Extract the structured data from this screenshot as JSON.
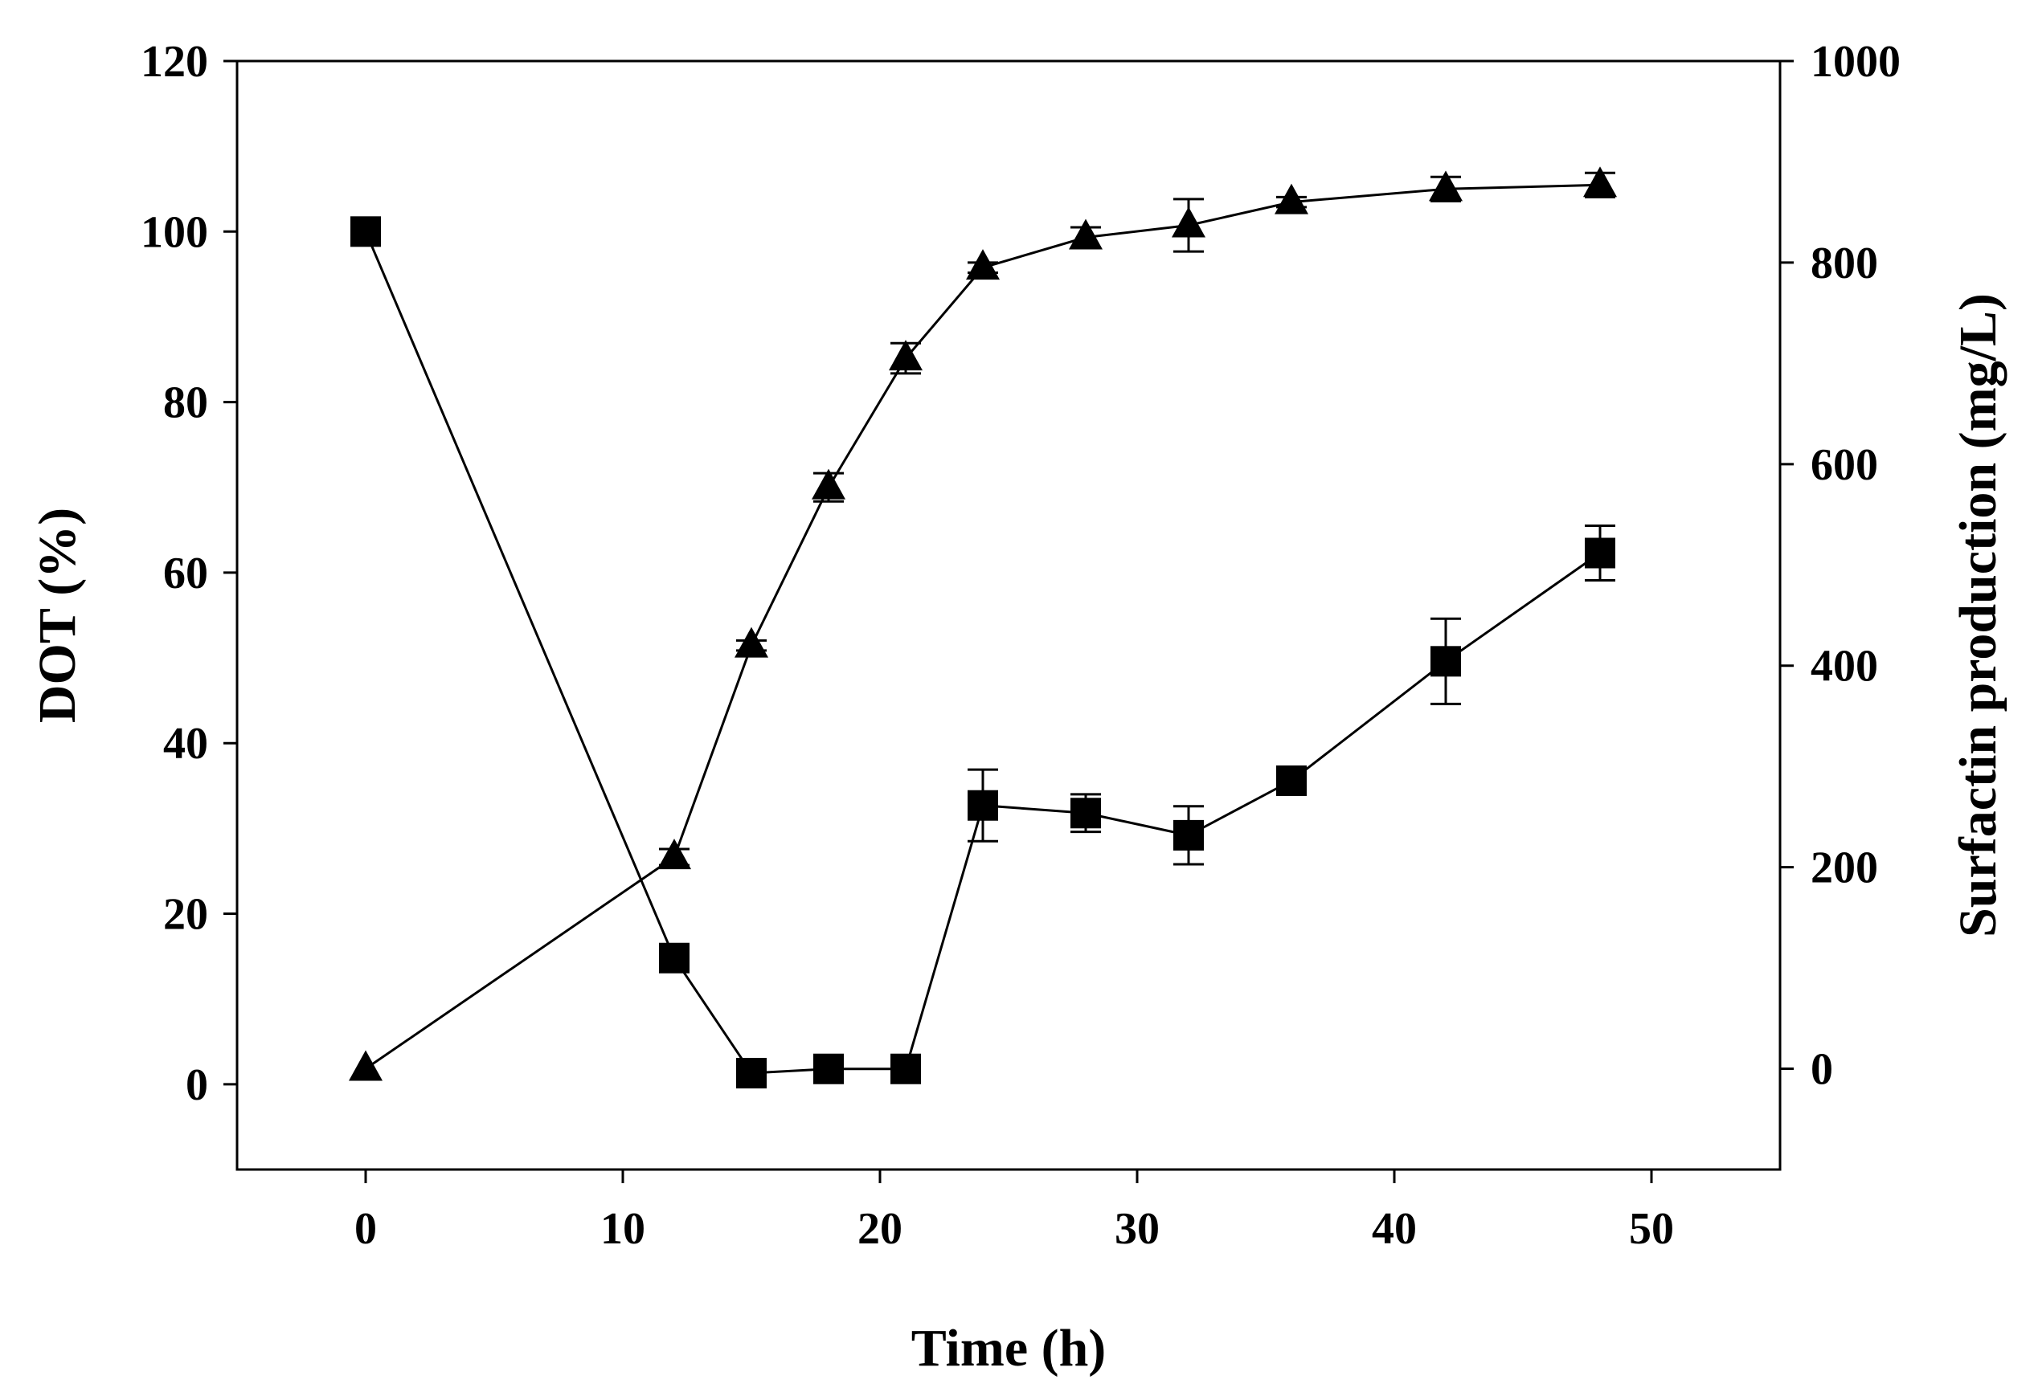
{
  "chart_data": {
    "type": "line",
    "xlabel": "Time (h)",
    "ylabel_left": "DOT (%)",
    "ylabel_right": "Surfactin production (mg/L)",
    "xlim": [
      -5,
      55
    ],
    "ylim_left": [
      -10,
      120
    ],
    "ylim_right": [
      -100,
      1000
    ],
    "x_ticks": [
      0,
      10,
      20,
      30,
      40,
      50
    ],
    "y_left_ticks": [
      0,
      20,
      40,
      60,
      80,
      100,
      120
    ],
    "y_right_ticks": [
      0,
      200,
      400,
      600,
      800,
      1000
    ],
    "grid": false,
    "legend": "none",
    "series": [
      {
        "name": "DOT",
        "axis": "left",
        "marker": "square",
        "x": [
          0,
          12,
          15,
          18,
          21,
          24,
          28,
          32,
          36,
          42,
          48
        ],
        "y": [
          100,
          14.8,
          1.3,
          1.8,
          1.8,
          32.7,
          31.8,
          29.2,
          35.6,
          49.6,
          62.3
        ],
        "err": [
          0,
          1.0,
          0.8,
          0.6,
          0.6,
          4.2,
          2.2,
          3.4,
          1.0,
          5.0,
          3.2
        ]
      },
      {
        "name": "Surfactin production",
        "axis": "right",
        "marker": "triangle",
        "x": [
          0,
          12,
          15,
          18,
          21,
          24,
          28,
          32,
          36,
          42,
          48
        ],
        "y": [
          0,
          210,
          420,
          577,
          705,
          795,
          825,
          837,
          860,
          873,
          877
        ],
        "err": [
          0,
          8,
          5,
          14,
          15,
          5,
          10,
          26,
          5,
          12,
          12
        ]
      }
    ]
  }
}
